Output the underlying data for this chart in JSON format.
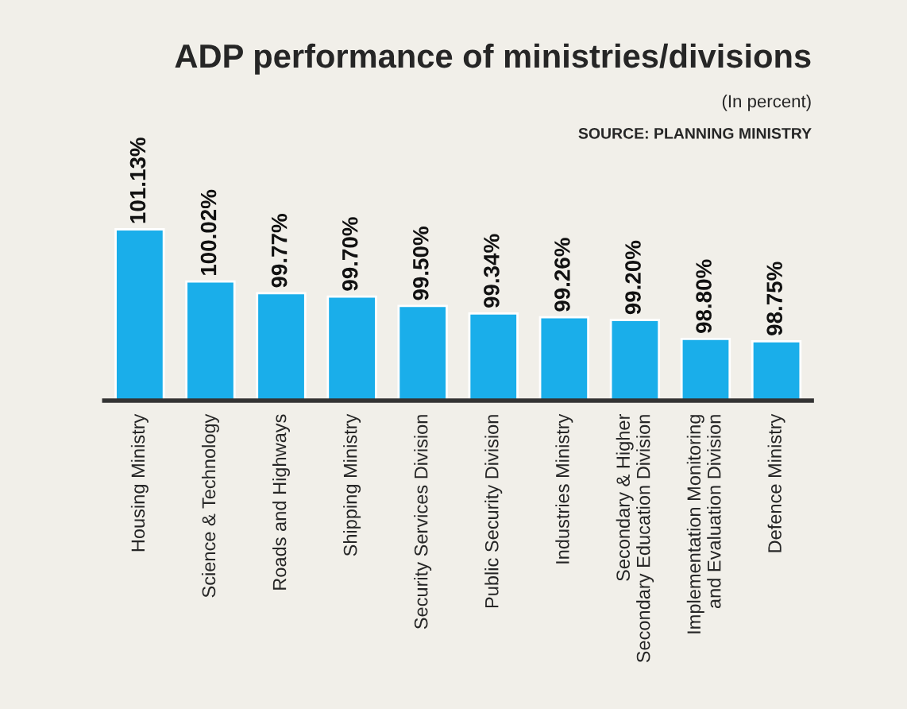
{
  "chart_data": {
    "type": "bar",
    "title": "ADP performance of ministries/divisions",
    "subtitle": "(In percent)",
    "annotations": [
      "SOURCE: PLANNING MINISTRY"
    ],
    "categories": [
      "Housing Ministry",
      "Science & Technology",
      "Roads and Highways",
      "Shipping Ministry",
      "Security Services Division",
      "Public Security Division",
      "Industries Ministry",
      "Secondary & Higher\nSecondary Education Division",
      "Implementation Monitoring\nand Evaluation Division",
      "Defence Ministry"
    ],
    "values": [
      101.13,
      100.02,
      99.77,
      99.7,
      99.5,
      99.34,
      99.26,
      99.2,
      98.8,
      98.75
    ],
    "value_labels": [
      "101.13%",
      "100.02%",
      "99.77%",
      "99.70%",
      "99.50%",
      "99.34%",
      "99.26%",
      "99.20%",
      "98.80%",
      "98.75%"
    ],
    "color": "#1aaeea",
    "tick_labels": "x",
    "grid": false,
    "legend": false
  }
}
